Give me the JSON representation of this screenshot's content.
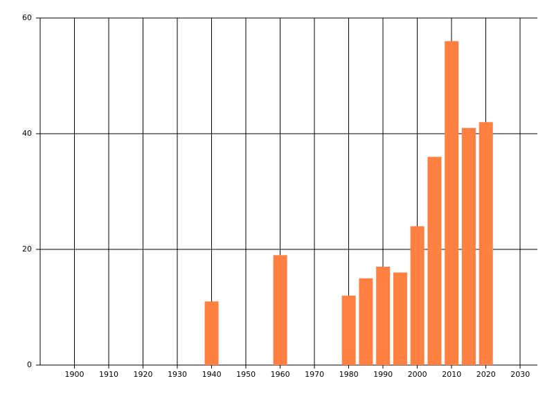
{
  "chart_data": {
    "type": "bar",
    "x": [
      1940,
      1960,
      1980,
      1985,
      1990,
      1995,
      2000,
      2005,
      2010,
      2015,
      2020
    ],
    "values": [
      11,
      19,
      12,
      15,
      17,
      16,
      24,
      36,
      56,
      41,
      42
    ],
    "color": "#ff8040",
    "xlim": [
      1890,
      2035
    ],
    "xticks": [
      1900,
      1910,
      1920,
      1930,
      1940,
      1950,
      1960,
      1970,
      1980,
      1990,
      2000,
      2010,
      2020,
      2030
    ],
    "ylim": [
      0,
      60
    ],
    "yticks": [
      0,
      20,
      40,
      60
    ],
    "grid": true
  }
}
